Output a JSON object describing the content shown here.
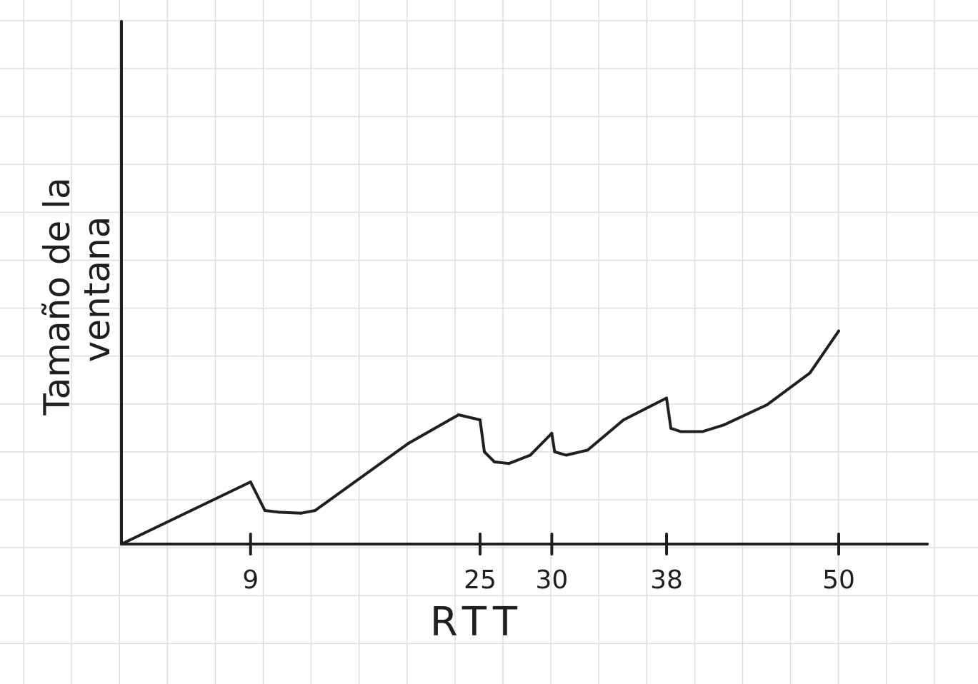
{
  "chart_data": {
    "type": "line",
    "title": "",
    "xlabel": "RTT",
    "ylabel": "Tamaño de la ventana",
    "ylabel_lines": [
      "Tamaño de la",
      "ventana"
    ],
    "xlim": [
      0,
      59
    ],
    "ylim": [
      0,
      100
    ],
    "grid": true,
    "legend": "none",
    "x_ticks": [
      9,
      25,
      30,
      38,
      50
    ],
    "x_tick_labels": [
      "9",
      "25",
      "30",
      "38",
      "50"
    ],
    "series": [
      {
        "x": [
          0,
          9,
          10,
          11,
          12.5,
          13.5,
          20,
          23.5,
          25,
          25.3,
          26,
          27,
          28.5,
          30,
          30.2,
          31,
          32.5,
          35,
          38,
          38.3,
          39,
          40.5,
          42,
          45,
          48,
          50
        ],
        "y": [
          0,
          18.5,
          10,
          9.5,
          9.2,
          10,
          30,
          38.5,
          37,
          27.5,
          24.5,
          24,
          26.5,
          33,
          27.5,
          26.5,
          28,
          37,
          43.5,
          34.5,
          33.5,
          33.5,
          35.5,
          41.5,
          51,
          63.5
        ]
      }
    ],
    "colors": {
      "background": "#ffffff",
      "grid": "#dedede",
      "ink": "#1f1f1f"
    }
  }
}
